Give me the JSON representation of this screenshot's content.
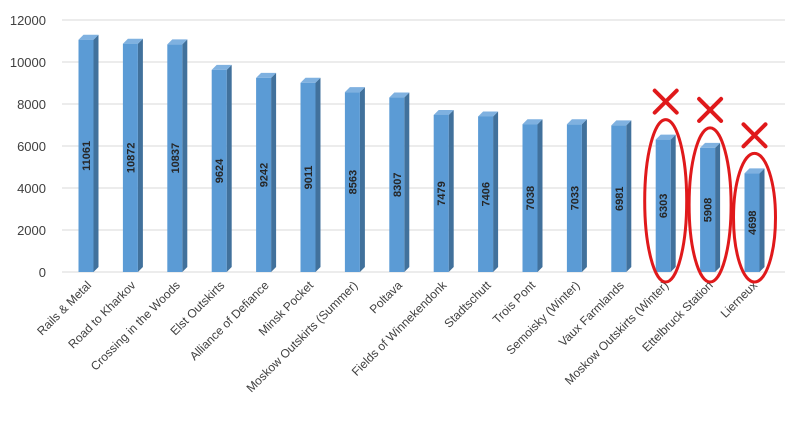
{
  "chart_data": {
    "type": "bar",
    "title": "",
    "xlabel": "",
    "ylabel": "",
    "ylim": [
      0,
      12000
    ],
    "yticks": [
      0,
      2000,
      4000,
      6000,
      8000,
      10000,
      12000
    ],
    "grid": true,
    "categories": [
      "Rails & Metal",
      "Road to Kharkov",
      "Crossing in the Woods",
      "Elst Outskirts",
      "Alliance of Defiance",
      "Minsk Pocket",
      "Moskow Outskirts (Summer)",
      "Poltava",
      "Fields of Winnekendonk",
      "Stadtschutt",
      "Trois Pont",
      "Semoisky (Winter)",
      "Vaux Farmlands",
      "Moskow Outskirts (Winter)",
      "Ettelbruck Station",
      "Lierneux"
    ],
    "values": [
      11061,
      10872,
      10837,
      9624,
      9242,
      9011,
      8563,
      8307,
      7479,
      7406,
      7038,
      7033,
      6981,
      6303,
      5908,
      4698
    ],
    "annotations": {
      "crossed_out": [
        "Moskow Outskirts (Winter)",
        "Ettelbruck Station",
        "Lierneux"
      ],
      "mark": "X",
      "mark_color": "#e0191b"
    },
    "colors": {
      "bar_front": "#5b9bd5",
      "bar_side": "#41719c",
      "bar_top": "#7fb1e0",
      "grid": "#d9d9d9"
    }
  }
}
